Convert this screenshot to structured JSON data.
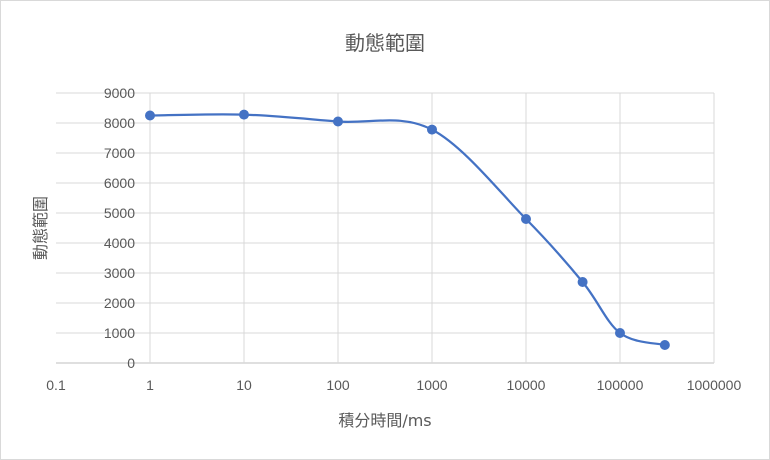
{
  "chart_data": {
    "type": "line",
    "title": "動態範圍",
    "xlabel": "積分時間/ms",
    "ylabel": "動態範圍",
    "x_scale": "log",
    "xlim": [
      0.1,
      1000000
    ],
    "ylim": [
      0,
      9000
    ],
    "x_ticks": [
      0.1,
      1,
      10,
      100,
      1000,
      10000,
      100000,
      1000000
    ],
    "x_tick_labels": [
      "0.1",
      "1",
      "10",
      "100",
      "1000",
      "10000",
      "100000",
      "1000000"
    ],
    "y_ticks": [
      0,
      1000,
      2000,
      3000,
      4000,
      5000,
      6000,
      7000,
      8000,
      9000
    ],
    "y_tick_labels": [
      "0",
      "1000",
      "2000",
      "3000",
      "4000",
      "5000",
      "6000",
      "7000",
      "8000",
      "9000"
    ],
    "grid": true,
    "legend": "none",
    "series_color": "#4472c4",
    "grid_color": "#d9d9d9",
    "series": [
      {
        "x": [
          1,
          10,
          100,
          1000,
          10000,
          40000,
          100000,
          300000
        ],
        "y": [
          8250,
          8280,
          8050,
          7780,
          4800,
          2700,
          1000,
          600
        ]
      }
    ]
  }
}
